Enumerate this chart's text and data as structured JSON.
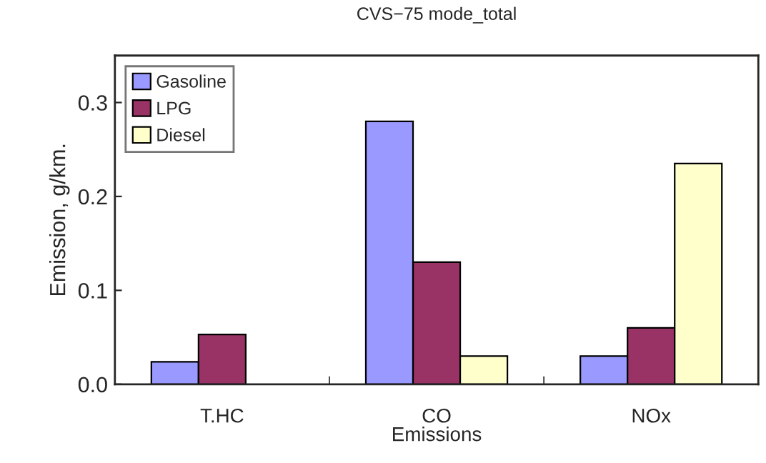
{
  "chart_data": {
    "type": "bar",
    "title": "CVS−75 mode_total",
    "xlabel": "Emissions",
    "ylabel": "Emission, g/km.",
    "categories": [
      "T.HC",
      "CO",
      "NOx"
    ],
    "series": [
      {
        "name": "Gasoline",
        "color": "#9999ff",
        "values": [
          0.024,
          0.28,
          0.03
        ]
      },
      {
        "name": "LPG",
        "color": "#993366",
        "values": [
          0.053,
          0.13,
          0.06
        ]
      },
      {
        "name": "Diesel",
        "color": "#ffffcc",
        "values": [
          null,
          0.03,
          0.235
        ]
      }
    ],
    "ylim": [
      0,
      0.35
    ],
    "yticks": [
      {
        "value": 0,
        "label": "0.0"
      },
      0.1,
      0.2,
      0.3
    ],
    "legend": "top left",
    "grid": false
  }
}
